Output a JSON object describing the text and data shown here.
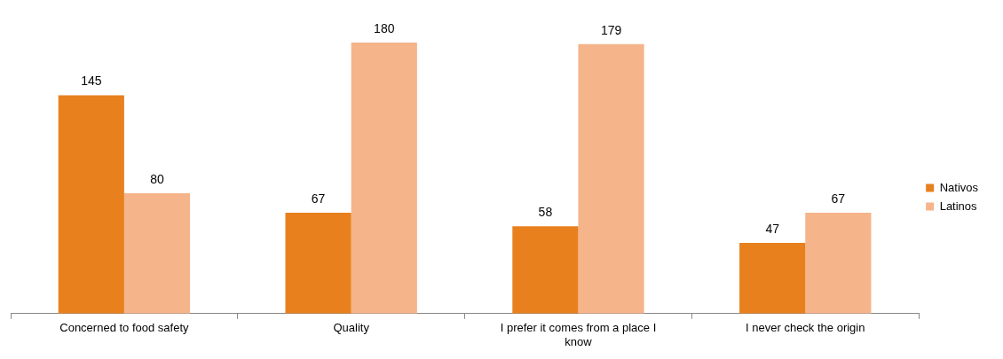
{
  "chart_data": {
    "type": "bar",
    "categories": [
      "Concerned to food safety",
      "Quality",
      "I prefer it comes from a place I know",
      "I never check the origin"
    ],
    "series": [
      {
        "name": "Nativos",
        "color": "#e8801e",
        "values": [
          145,
          67,
          58,
          47
        ]
      },
      {
        "name": "Latinos",
        "color": "#f5b48a",
        "values": [
          80,
          180,
          179,
          67
        ]
      }
    ],
    "data_labels": true,
    "legend": "right"
  }
}
